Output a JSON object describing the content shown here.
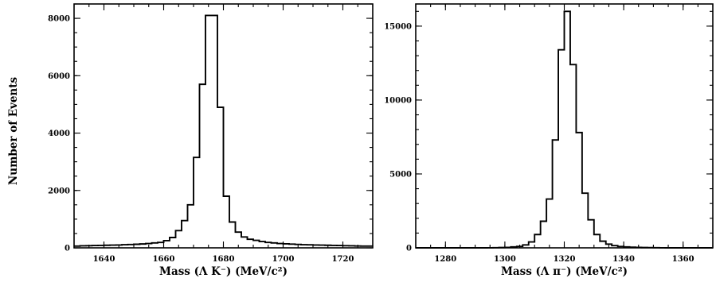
{
  "chart_data": [
    {
      "type": "histogram",
      "xlabel": "Mass (Λ K⁻) (MeV/c²)",
      "ylabel": "Number of Events",
      "xlim": [
        1630,
        1730
      ],
      "ylim": [
        0,
        8500
      ],
      "xticks": [
        1640,
        1660,
        1680,
        1700,
        1720
      ],
      "xtick_labels": [
        "1640",
        "1660",
        "1680",
        "1700",
        "1720"
      ],
      "yticks": [
        0,
        2000,
        4000,
        6000,
        8000
      ],
      "ytick_labels": [
        "0",
        "2000",
        "4000",
        "6000",
        "8000"
      ],
      "minor_x_step": 5,
      "minor_y_step": 500,
      "bin_width": 2,
      "bins": {
        "x_low": [
          1630,
          1632,
          1634,
          1636,
          1638,
          1640,
          1642,
          1644,
          1646,
          1648,
          1650,
          1652,
          1654,
          1656,
          1658,
          1660,
          1662,
          1664,
          1666,
          1668,
          1670,
          1672,
          1674,
          1676,
          1678,
          1680,
          1682,
          1684,
          1686,
          1688,
          1690,
          1692,
          1694,
          1696,
          1698,
          1700,
          1702,
          1704,
          1706,
          1708,
          1710,
          1712,
          1714,
          1716,
          1718,
          1720,
          1722,
          1724,
          1726,
          1728
        ],
        "values": [
          60,
          70,
          75,
          80,
          85,
          90,
          95,
          100,
          110,
          115,
          125,
          135,
          150,
          170,
          190,
          250,
          360,
          600,
          950,
          1500,
          3150,
          5700,
          8100,
          8100,
          4900,
          1800,
          900,
          550,
          380,
          300,
          260,
          220,
          190,
          170,
          150,
          140,
          130,
          120,
          110,
          105,
          100,
          95,
          90,
          85,
          80,
          75,
          70,
          65,
          60,
          60
        ]
      }
    },
    {
      "type": "histogram",
      "xlabel": "Mass (Λ π⁻) (MeV/c²)",
      "ylabel": "",
      "xlim": [
        1270,
        1370
      ],
      "ylim": [
        0,
        16500
      ],
      "xticks": [
        1280,
        1300,
        1320,
        1340,
        1360
      ],
      "xtick_labels": [
        "1280",
        "1300",
        "1320",
        "1340",
        "1360"
      ],
      "yticks": [
        0,
        5000,
        10000,
        15000
      ],
      "ytick_labels": [
        "0",
        "5000",
        "10000",
        "15000"
      ],
      "minor_x_step": 5,
      "minor_y_step": 1000,
      "bin_width": 2,
      "bins": {
        "x_low": [
          1270,
          1272,
          1274,
          1276,
          1278,
          1280,
          1282,
          1284,
          1286,
          1288,
          1290,
          1292,
          1294,
          1296,
          1298,
          1300,
          1302,
          1304,
          1306,
          1308,
          1310,
          1312,
          1314,
          1316,
          1318,
          1320,
          1322,
          1324,
          1326,
          1328,
          1330,
          1332,
          1334,
          1336,
          1338,
          1340,
          1342,
          1344,
          1346,
          1348,
          1350,
          1352,
          1354,
          1356,
          1358,
          1360,
          1362,
          1364,
          1366,
          1368
        ],
        "values": [
          0,
          0,
          0,
          0,
          0,
          0,
          0,
          0,
          0,
          0,
          0,
          0,
          5,
          10,
          20,
          30,
          60,
          100,
          200,
          400,
          900,
          1800,
          3300,
          7300,
          13400,
          16000,
          12400,
          7800,
          3700,
          1900,
          900,
          450,
          250,
          150,
          90,
          60,
          40,
          30,
          20,
          15,
          10,
          5,
          0,
          0,
          0,
          0,
          0,
          0,
          0,
          0
        ]
      }
    }
  ]
}
